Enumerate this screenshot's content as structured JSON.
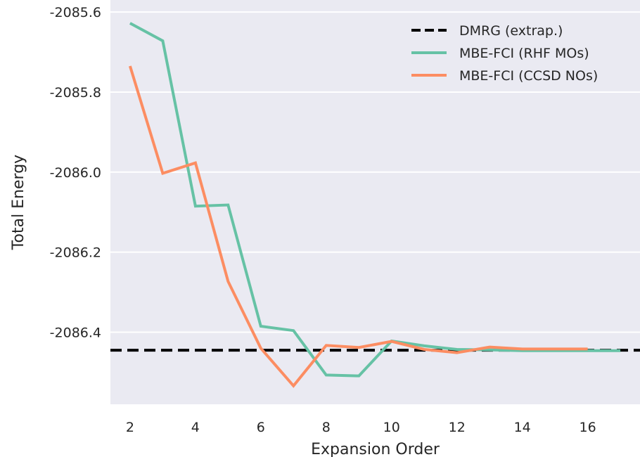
{
  "chart_data": {
    "type": "line",
    "title": "",
    "xlabel": "Expansion Order",
    "ylabel": "Total Energy",
    "xlim": [
      1.4,
      17.6
    ],
    "ylim": [
      -2086.58,
      -2085.57
    ],
    "xticks": [
      2,
      4,
      6,
      8,
      10,
      12,
      14,
      16
    ],
    "xtick_labels": [
      "2",
      "4",
      "6",
      "8",
      "10",
      "12",
      "14",
      "16"
    ],
    "yticks": [
      -2085.6,
      -2085.8,
      -2086.0,
      -2086.2,
      -2086.4
    ],
    "ytick_labels": [
      "-2085.6",
      "-2085.8",
      "-2086.0",
      "-2086.2",
      "-2086.4"
    ],
    "grid": true,
    "legend_position": "top-right",
    "reference_line": {
      "name": "DMRG (extrap.)",
      "y": -2086.445,
      "color": "#000000",
      "style": "dashed"
    },
    "series": [
      {
        "name": "MBE-FCI (RHF MOs)",
        "color": "#66c2a5",
        "x": [
          2,
          3,
          4,
          5,
          6,
          7,
          8,
          9,
          10,
          11,
          12,
          13,
          14,
          15,
          16,
          17
        ],
        "values": [
          -2085.628,
          -2085.672,
          -2086.085,
          -2086.082,
          -2086.385,
          -2086.396,
          -2086.507,
          -2086.509,
          -2086.422,
          -2086.434,
          -2086.443,
          -2086.444,
          -2086.446,
          -2086.446,
          -2086.446,
          -2086.446
        ]
      },
      {
        "name": "MBE-FCI (CCSD NOs)",
        "color": "#fc8d62",
        "x": [
          2,
          3,
          4,
          5,
          6,
          7,
          8,
          9,
          10,
          11,
          12,
          13,
          14,
          15,
          16
        ],
        "values": [
          -2085.735,
          -2086.003,
          -2085.977,
          -2086.273,
          -2086.44,
          -2086.534,
          -2086.433,
          -2086.438,
          -2086.423,
          -2086.443,
          -2086.451,
          -2086.437,
          -2086.442,
          -2086.442,
          -2086.442
        ]
      }
    ]
  }
}
